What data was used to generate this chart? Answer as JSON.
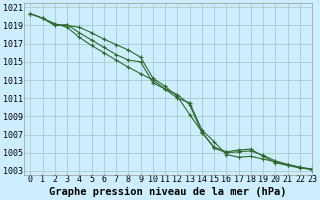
{
  "background_color": "#cceeff",
  "grid_color": "#aacccc",
  "line_color": "#2d6a2d",
  "title": "Graphe pression niveau de la mer (hPa)",
  "xlim": [
    -0.5,
    23
  ],
  "ylim": [
    1002.5,
    1021.5
  ],
  "yticks": [
    1003,
    1005,
    1007,
    1009,
    1011,
    1013,
    1015,
    1017,
    1019,
    1021
  ],
  "xticks": [
    0,
    1,
    2,
    3,
    4,
    5,
    6,
    7,
    8,
    9,
    10,
    11,
    12,
    13,
    14,
    15,
    16,
    17,
    18,
    19,
    20,
    21,
    22,
    23
  ],
  "line1": [
    1020.3,
    1019.8,
    1019.1,
    1019.0,
    1018.8,
    1018.2,
    1017.5,
    1016.9,
    1016.3,
    1015.5,
    1013.2,
    1012.3,
    1011.2,
    1009.2,
    1007.3,
    1005.5,
    1005.0,
    1005.1,
    1005.2,
    1004.7,
    1004.1,
    1003.7,
    1003.4,
    1003.2
  ],
  "line2": [
    1020.3,
    1019.8,
    1019.0,
    1019.1,
    1018.2,
    1017.4,
    1016.6,
    1015.8,
    1015.2,
    1015.0,
    1012.7,
    1012.0,
    1011.4,
    1010.3,
    1007.2,
    1005.6,
    1005.1,
    1005.3,
    1005.4,
    1004.6,
    1003.9,
    1003.6,
    1003.3,
    1003.2
  ],
  "line3": [
    1020.3,
    1019.8,
    1019.2,
    1018.8,
    1017.7,
    1016.8,
    1016.0,
    1015.2,
    1014.4,
    1013.7,
    1013.0,
    1012.0,
    1011.0,
    1010.5,
    1007.5,
    1006.2,
    1004.8,
    1004.5,
    1004.6,
    1004.3,
    1004.0,
    1003.7,
    1003.4,
    1003.1
  ],
  "title_fontsize": 7.5,
  "tick_fontsize": 6,
  "marker": "+",
  "markersize": 3.5,
  "linewidth": 0.8
}
